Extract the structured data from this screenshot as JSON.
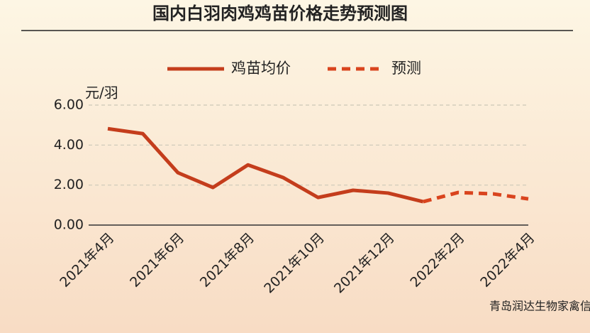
{
  "chart_data": {
    "type": "line",
    "title": "国内白羽肉鸡鸡苗价格走势预测图",
    "y_label": "元/羽",
    "source": "青岛润达生物家禽信息",
    "categories": [
      "2021年4月",
      null,
      "2021年6月",
      null,
      "2021年8月",
      null,
      "2021年10月",
      null,
      "2021年12月",
      null,
      "2022年2月",
      null,
      "2022年4月"
    ],
    "series": [
      {
        "name": "鸡苗均价",
        "color": "#c43d1c",
        "style": "solid",
        "values": [
          4.82,
          4.57,
          2.62,
          1.88,
          3.01,
          2.38,
          1.38,
          1.74,
          1.6,
          1.17,
          null,
          null,
          null
        ]
      },
      {
        "name": "预测",
        "color": "#d9441e",
        "style": "dashed",
        "values": [
          null,
          null,
          null,
          null,
          null,
          null,
          null,
          null,
          null,
          1.17,
          1.63,
          1.56,
          1.31
        ]
      }
    ],
    "ylim": [
      0,
      6
    ],
    "yticks": [
      {
        "value": 0,
        "label": "0.00"
      },
      {
        "value": 2,
        "label": "2.00"
      },
      {
        "value": 4,
        "label": "4.00"
      },
      {
        "value": 6,
        "label": "6.00"
      }
    ],
    "grid": true,
    "legend": "top"
  }
}
